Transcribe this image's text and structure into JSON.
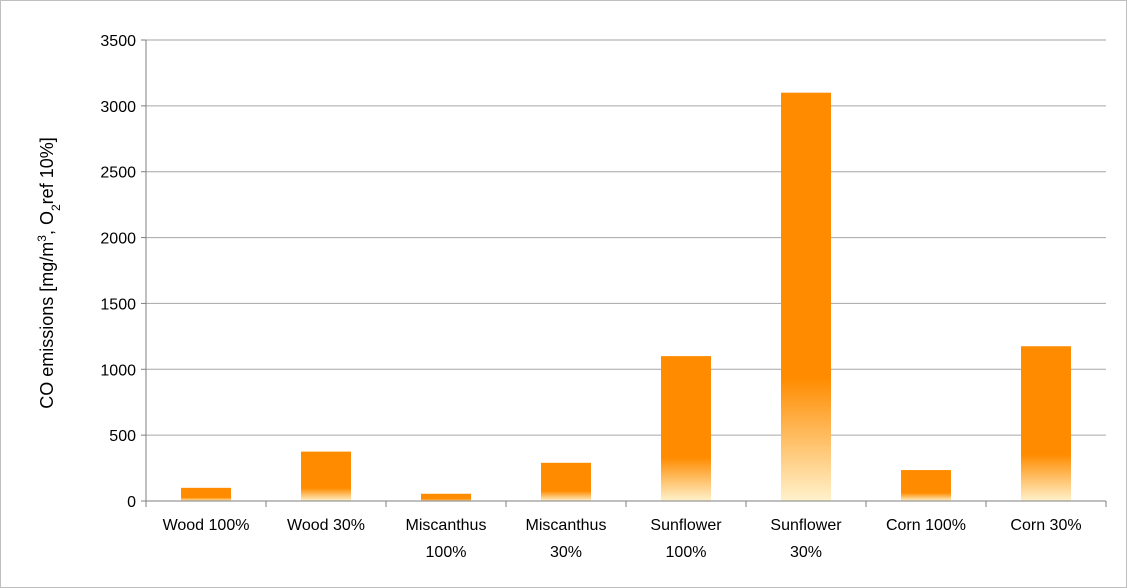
{
  "chart_data": {
    "type": "bar",
    "title": "",
    "xlabel": "",
    "ylabel": {
      "parts": [
        {
          "text": "CO emissions [mg/m"
        },
        {
          "text": "3",
          "script": "super"
        },
        {
          "text": ", O"
        },
        {
          "text": "2",
          "script": "sub"
        },
        {
          "text": "ref 10%]"
        }
      ]
    },
    "categories": [
      [
        "Wood 100%"
      ],
      [
        "Wood 30%"
      ],
      [
        "Miscanthus",
        "100%"
      ],
      [
        "Miscanthus",
        "30%"
      ],
      [
        "Sunflower",
        "100%"
      ],
      [
        "Sunflower",
        "30%"
      ],
      [
        "Corn 100%"
      ],
      [
        "Corn 30%"
      ]
    ],
    "values": [
      100,
      375,
      55,
      290,
      1100,
      3100,
      235,
      1175
    ],
    "ylim": [
      0,
      3500
    ],
    "yticks": [
      0,
      500,
      1000,
      1500,
      2000,
      2500,
      3000,
      3500
    ],
    "grid": true,
    "legend": "none",
    "colors": {
      "bar": "#ff8c00",
      "bar_fade": "#fff2cc",
      "gridline": "#a6a6a6",
      "axis": "#7f7f7f"
    }
  }
}
